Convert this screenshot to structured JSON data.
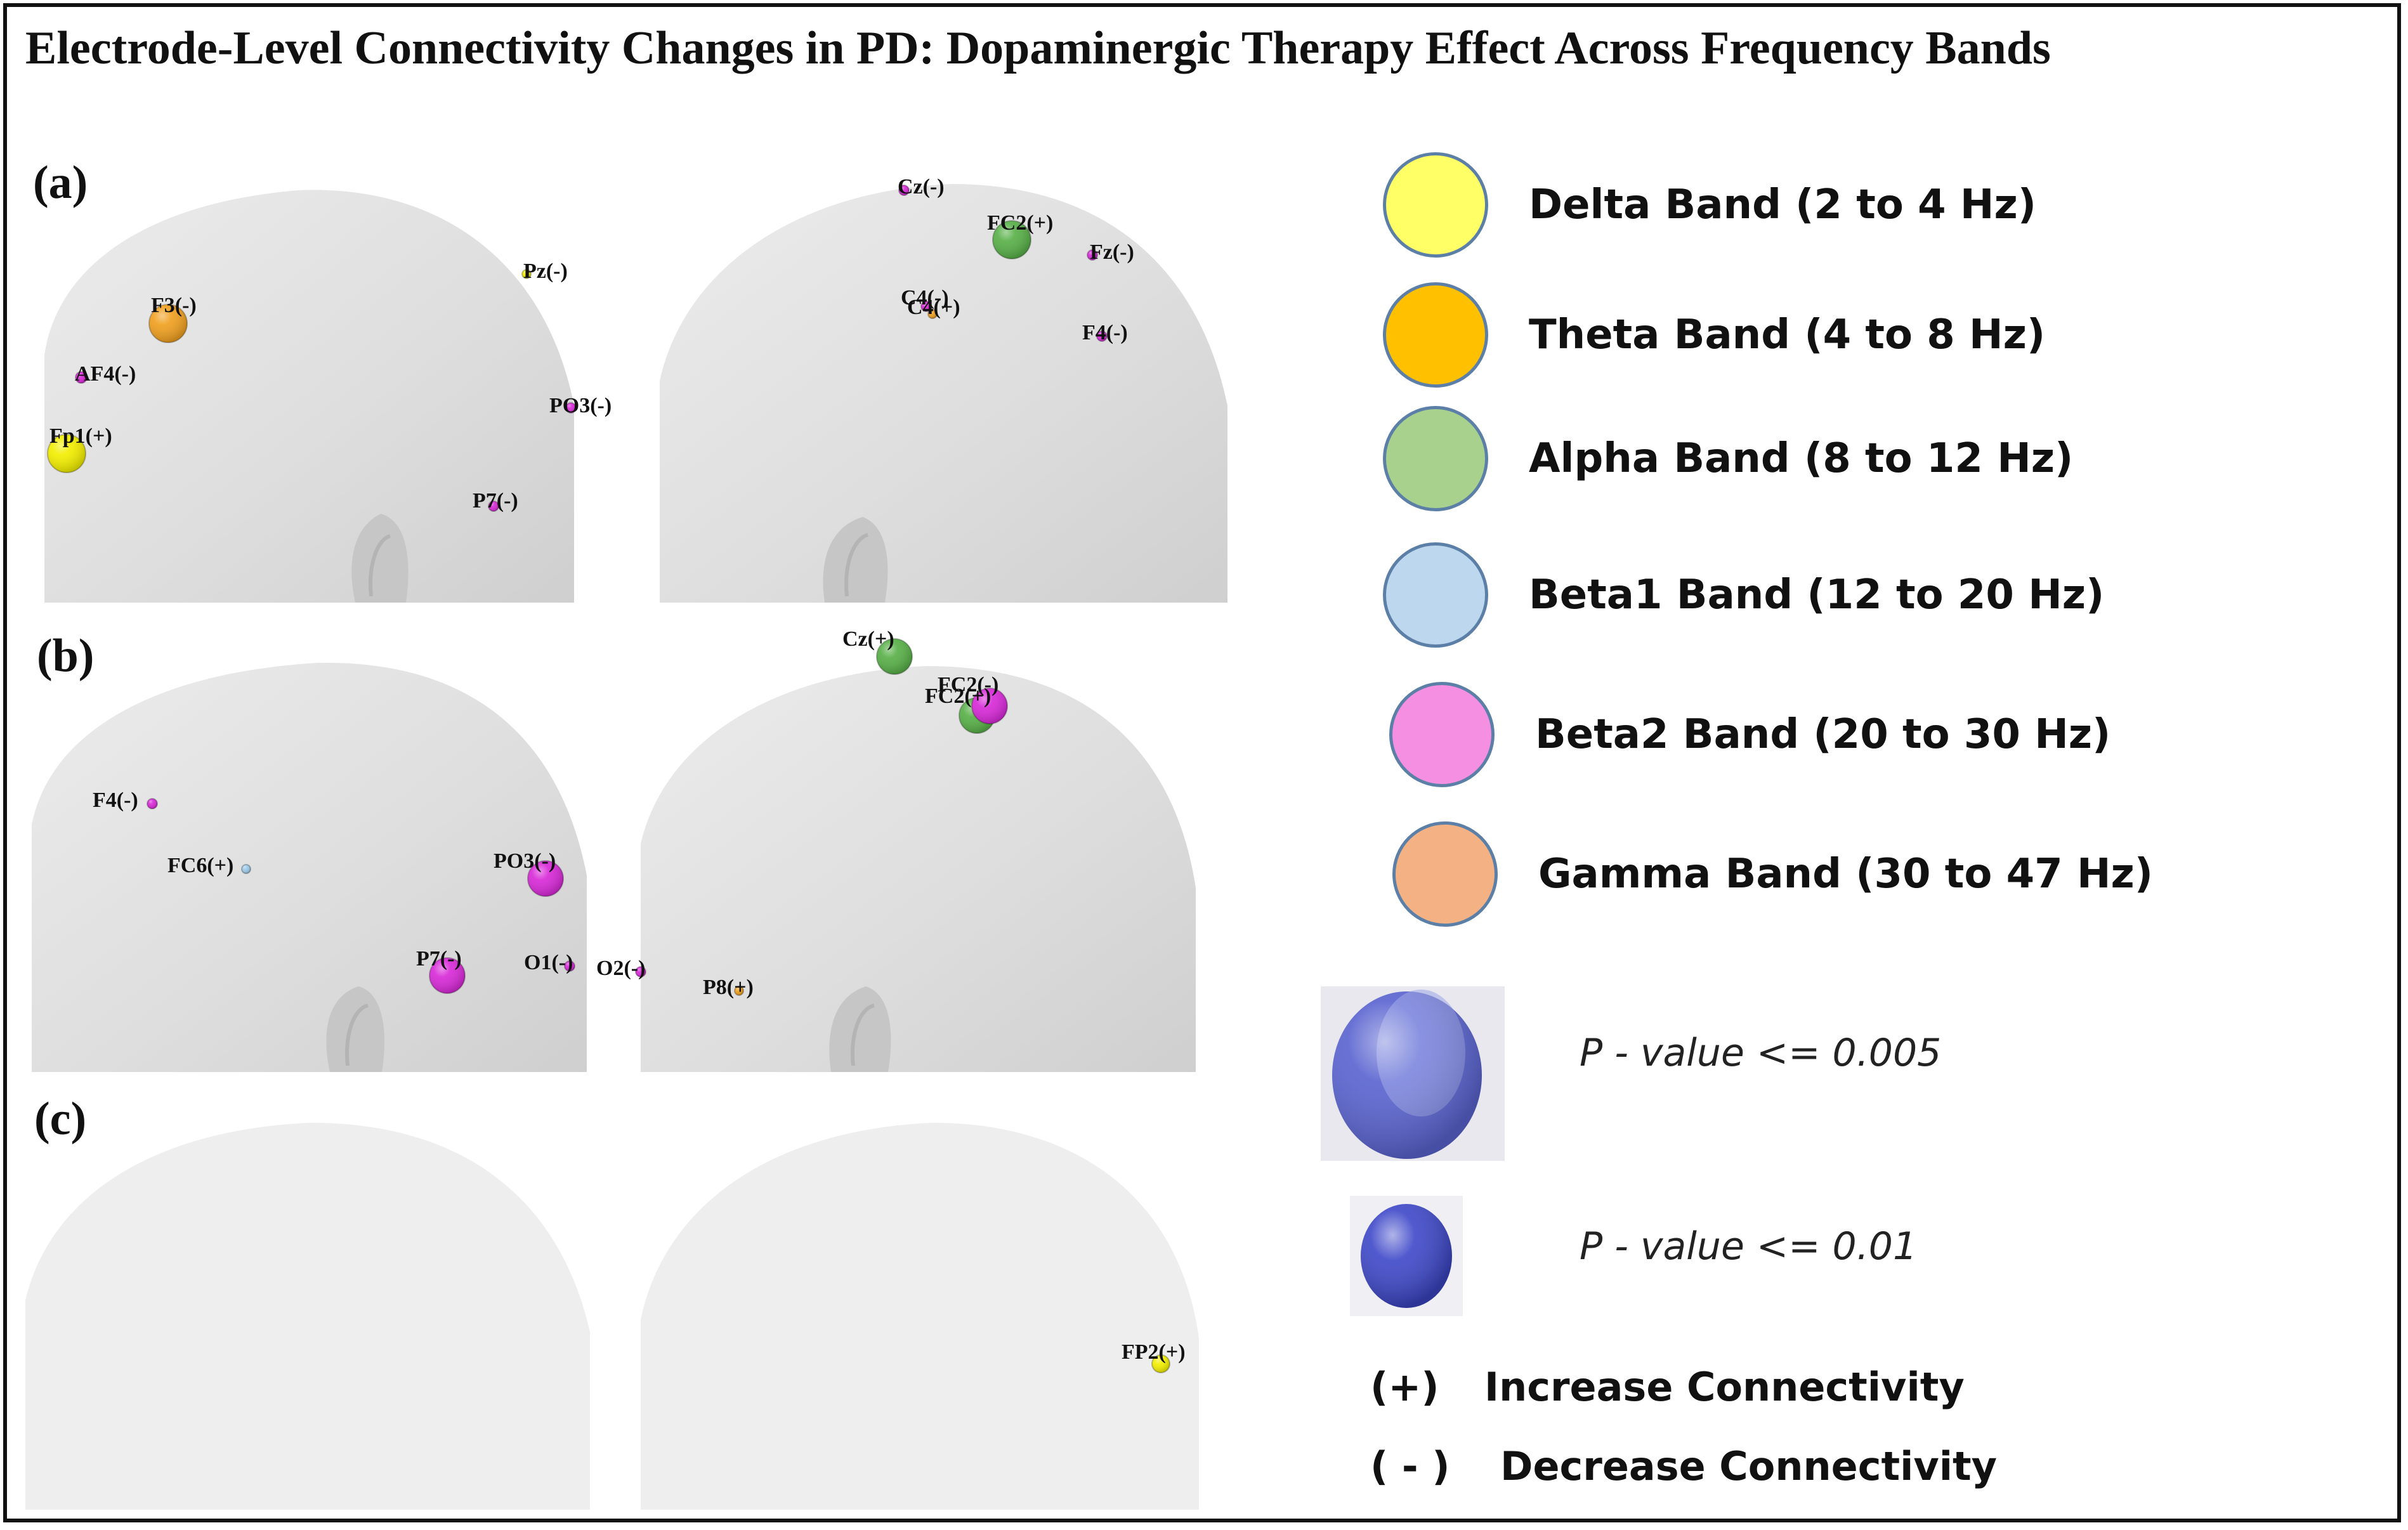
{
  "title": "Electrode-Level Connectivity Changes in PD: Dopaminergic Therapy Effect Across Frequency Bands",
  "panels": {
    "a": {
      "label": "(a)",
      "electrodes": [
        {
          "name": "F3(-)",
          "band": "theta",
          "significance": "p<=0.005"
        },
        {
          "name": "AF4(-)",
          "band": "beta2",
          "significance": "p<=0.01"
        },
        {
          "name": "Fp1(+)",
          "band": "delta",
          "significance": "p<=0.005"
        },
        {
          "name": "Pz(-)",
          "band": "delta",
          "significance": "p<=0.01"
        },
        {
          "name": "PO3(-)",
          "band": "beta2",
          "significance": "p<=0.01"
        },
        {
          "name": "P7(-)",
          "band": "beta2",
          "significance": "p<=0.01"
        },
        {
          "name": "Cz(-)",
          "band": "beta2",
          "significance": "p<=0.01"
        },
        {
          "name": "FC2(+)",
          "band": "alpha",
          "significance": "p<=0.005"
        },
        {
          "name": "Fz(-)",
          "band": "beta2",
          "significance": "p<=0.01"
        },
        {
          "name": "C4(-)",
          "band": "beta2",
          "significance": "p<=0.01"
        },
        {
          "name": "C4(+)",
          "band": "theta",
          "significance": "p<=0.01"
        },
        {
          "name": "F4(-)",
          "band": "beta2",
          "significance": "p<=0.01"
        }
      ]
    },
    "b": {
      "label": "(b)",
      "electrodes": [
        {
          "name": "F4(-)",
          "band": "beta2",
          "significance": "p<=0.01"
        },
        {
          "name": "FC6(+)",
          "band": "beta1",
          "significance": "p<=0.01"
        },
        {
          "name": "PO3(-)",
          "band": "beta2",
          "significance": "p<=0.005"
        },
        {
          "name": "P7(-)",
          "band": "beta2",
          "significance": "p<=0.005"
        },
        {
          "name": "O1(-)",
          "band": "beta2",
          "significance": "p<=0.01"
        },
        {
          "name": "O2(-)",
          "band": "beta2",
          "significance": "p<=0.01"
        },
        {
          "name": "P8(+)",
          "band": "theta",
          "significance": "p<=0.01"
        },
        {
          "name": "Cz(+)",
          "band": "alpha",
          "significance": "p<=0.005"
        },
        {
          "name": "FC2(-)",
          "band": "beta2",
          "significance": "p<=0.005"
        },
        {
          "name": "FC2(+)",
          "band": "alpha",
          "significance": "p<=0.005"
        }
      ]
    },
    "c": {
      "label": "(c)",
      "electrodes": [
        {
          "name": "FP2(+)",
          "band": "delta",
          "significance": "p<=0.01"
        }
      ]
    }
  },
  "legend": {
    "bands": [
      {
        "key": "delta",
        "label": "Delta Band (2 to 4 Hz)",
        "color": "#ffff66"
      },
      {
        "key": "theta",
        "label": "Theta Band (4 to 8 Hz)",
        "color": "#ffc000"
      },
      {
        "key": "alpha",
        "label": "Alpha Band (8 to 12 Hz)",
        "color": "#a9d18e"
      },
      {
        "key": "beta1",
        "label": "Beta1 Band (12 to 20 Hz)",
        "color": "#bdd7ee"
      },
      {
        "key": "beta2",
        "label": "Beta2 Band (20 to 30 Hz)",
        "color": "#f48fe1"
      },
      {
        "key": "gamma",
        "label": "Gamma Band (30 to 47 Hz)",
        "color": "#f4b183"
      }
    ],
    "pvalues": [
      {
        "label": "P - value <= 0.005",
        "size": "large"
      },
      {
        "label": "P - value <= 0.01",
        "size": "small"
      }
    ],
    "directions": [
      {
        "symbol": "(+)",
        "label": "Increase Connectivity"
      },
      {
        "symbol": "( - )",
        "label": "Decrease Connectivity"
      }
    ]
  },
  "sphere_colors": {
    "delta": "#f2ee00",
    "theta": "#f0a020",
    "alpha": "#58b048",
    "beta1": "#9ecbea",
    "beta2": "#d82ad8",
    "gamma": "#f4a070"
  }
}
